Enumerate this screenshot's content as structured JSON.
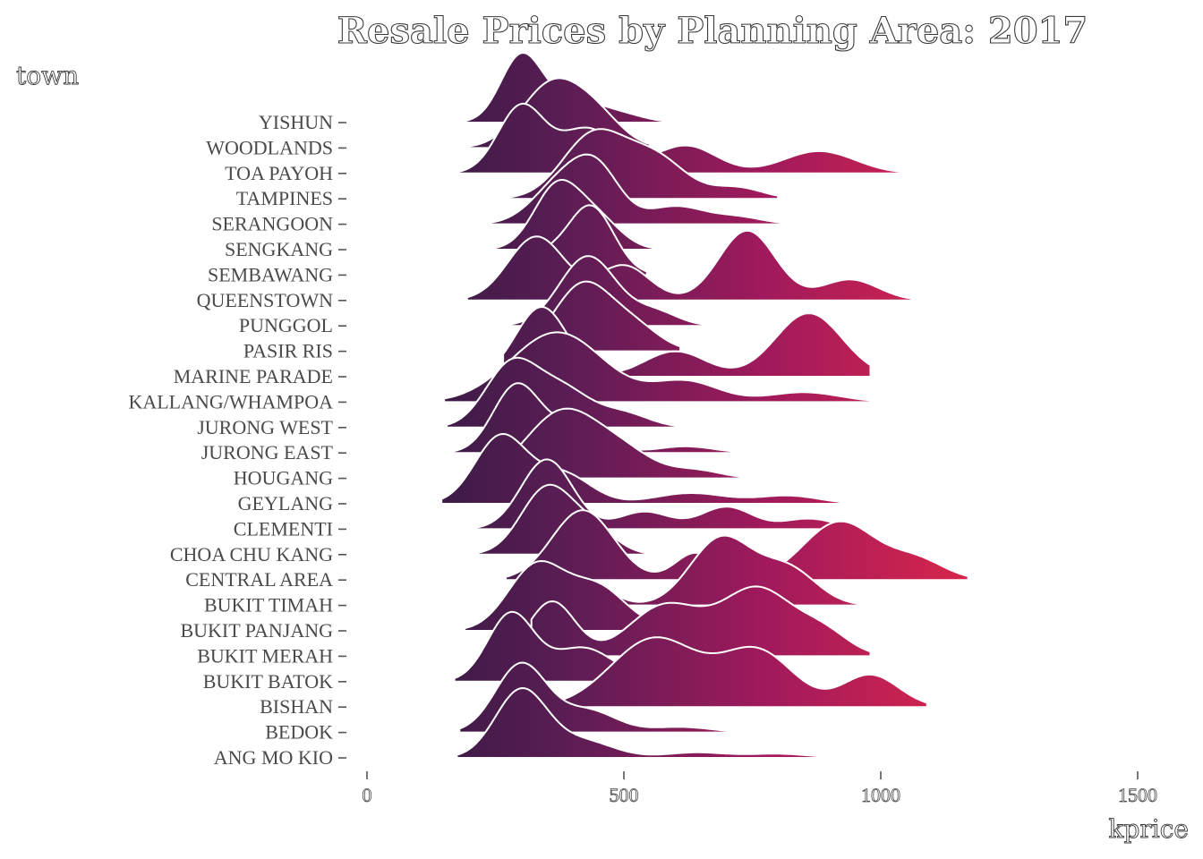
{
  "chart_data": {
    "type": "ridgeline",
    "title": "Resale Prices by Planning Area: 2017",
    "xlabel": "kprice",
    "ylabel": "town",
    "xlim": [
      -20,
      1550
    ],
    "x_ticks": [
      0,
      500,
      1000,
      1500
    ],
    "x_tick_labels": [
      "0",
      "500",
      "1000",
      "1500"
    ],
    "grid": false,
    "legend": "none",
    "fill_colormap": [
      "#2a1a3d",
      "#5b1d54",
      "#a01a5c",
      "#d6254c",
      "#ee5a3a"
    ],
    "categories": [
      "ANG MO KIO",
      "BEDOK",
      "BISHAN",
      "BUKIT BATOK",
      "BUKIT MERAH",
      "BUKIT PANJANG",
      "BUKIT TIMAH",
      "CENTRAL AREA",
      "CHOA CHU KANG",
      "CLEMENTI",
      "GEYLANG",
      "HOUGANG",
      "JURONG EAST",
      "JURONG WEST",
      "KALLANG/WHAMPOA",
      "MARINE PARADE",
      "PASIR RIS",
      "PUNGGOL",
      "QUEENSTOWN",
      "SEMBAWANG",
      "SENGKANG",
      "SERANGOON",
      "TAMPINES",
      "TOA PAYOH",
      "WOODLANDS",
      "YISHUN"
    ],
    "series": [
      {
        "name": "ANG MO KIO",
        "min": 175,
        "max": 930,
        "peaks": [
          [
            300,
            50,
            1.0
          ],
          [
            420,
            60,
            0.25
          ],
          [
            640,
            60,
            0.08
          ],
          [
            800,
            60,
            0.06
          ]
        ]
      },
      {
        "name": "BEDOK",
        "min": 180,
        "max": 820,
        "peaks": [
          [
            300,
            50,
            1.0
          ],
          [
            430,
            55,
            0.32
          ],
          [
            610,
            60,
            0.08
          ]
        ]
      },
      {
        "name": "BISHAN",
        "min": 380,
        "max": 1090,
        "peaks": [
          [
            560,
            85,
            0.75
          ],
          [
            760,
            70,
            0.6
          ],
          [
            980,
            55,
            0.35
          ]
        ]
      },
      {
        "name": "BUKIT BATOK",
        "min": 170,
        "max": 720,
        "peaks": [
          [
            280,
            45,
            1.0
          ],
          [
            420,
            60,
            0.5
          ],
          [
            600,
            55,
            0.08
          ]
        ]
      },
      {
        "name": "BUKIT MERAH",
        "min": 320,
        "max": 980,
        "peaks": [
          [
            360,
            45,
            0.65
          ],
          [
            580,
            70,
            0.6
          ],
          [
            760,
            70,
            0.8
          ],
          [
            890,
            50,
            0.25
          ]
        ]
      },
      {
        "name": "BUKIT PANJANG",
        "min": 190,
        "max": 700,
        "peaks": [
          [
            330,
            55,
            1.0
          ],
          [
            450,
            55,
            0.65
          ],
          [
            600,
            50,
            0.08
          ]
        ]
      },
      {
        "name": "BUKIT TIMAH",
        "min": 380,
        "max": 980,
        "peaks": [
          [
            440,
            40,
            0.25
          ],
          [
            690,
            60,
            0.85
          ],
          [
            820,
            55,
            0.45
          ]
        ]
      },
      {
        "name": "CENTRAL AREA",
        "min": 270,
        "max": 1170,
        "peaks": [
          [
            420,
            60,
            0.9
          ],
          [
            640,
            40,
            0.35
          ],
          [
            920,
            70,
            0.75
          ],
          [
            1070,
            55,
            0.25
          ]
        ]
      },
      {
        "name": "CHOA CHU KANG",
        "min": 190,
        "max": 590,
        "peaks": [
          [
            350,
            50,
            1.0
          ],
          [
            440,
            45,
            0.35
          ]
        ]
      },
      {
        "name": "CLEMENTI",
        "min": 180,
        "max": 940,
        "peaks": [
          [
            350,
            50,
            1.0
          ],
          [
            540,
            50,
            0.25
          ],
          [
            700,
            50,
            0.32
          ],
          [
            860,
            50,
            0.15
          ]
        ]
      },
      {
        "name": "GEYLANG",
        "min": 145,
        "max": 920,
        "peaks": [
          [
            260,
            50,
            1.0
          ],
          [
            380,
            55,
            0.45
          ],
          [
            630,
            70,
            0.16
          ],
          [
            820,
            60,
            0.12
          ]
        ]
      },
      {
        "name": "HOUGANG",
        "min": 185,
        "max": 740,
        "peaks": [
          [
            380,
            70,
            0.85
          ],
          [
            500,
            60,
            0.3
          ],
          [
            640,
            50,
            0.1
          ]
        ]
      },
      {
        "name": "JURONG EAST",
        "min": 165,
        "max": 730,
        "peaks": [
          [
            290,
            45,
            1.0
          ],
          [
            400,
            55,
            0.4
          ],
          [
            620,
            55,
            0.1
          ]
        ]
      },
      {
        "name": "JURONG WEST",
        "min": 155,
        "max": 620,
        "peaks": [
          [
            280,
            50,
            0.9
          ],
          [
            380,
            55,
            0.55
          ],
          [
            500,
            50,
            0.2
          ]
        ]
      },
      {
        "name": "KALLANG/WHAMPOA",
        "min": 150,
        "max": 1020,
        "peaks": [
          [
            370,
            90,
            0.85
          ],
          [
            620,
            65,
            0.25
          ],
          [
            850,
            70,
            0.12
          ]
        ]
      },
      {
        "name": "MARINE PARADE",
        "min": 265,
        "max": 980,
        "peaks": [
          [
            340,
            50,
            0.55
          ],
          [
            600,
            60,
            0.2
          ],
          [
            860,
            65,
            0.5
          ]
        ]
      },
      {
        "name": "PASIR RIS",
        "min": 250,
        "max": 610,
        "peaks": [
          [
            420,
            55,
            1.0
          ],
          [
            520,
            50,
            0.35
          ]
        ]
      },
      {
        "name": "PUNGGOL",
        "min": 250,
        "max": 710,
        "peaks": [
          [
            430,
            55,
            1.0
          ],
          [
            560,
            45,
            0.2
          ]
        ]
      },
      {
        "name": "QUEENSTOWN",
        "min": 195,
        "max": 1060,
        "peaks": [
          [
            330,
            55,
            0.55
          ],
          [
            500,
            50,
            0.3
          ],
          [
            740,
            55,
            0.6
          ],
          [
            940,
            55,
            0.18
          ]
        ]
      },
      {
        "name": "SEMBAWANG",
        "min": 215,
        "max": 545,
        "peaks": [
          [
            435,
            45,
            1.0
          ],
          [
            340,
            40,
            0.25
          ]
        ]
      },
      {
        "name": "SENGKANG",
        "min": 240,
        "max": 620,
        "peaks": [
          [
            370,
            45,
            1.0
          ],
          [
            450,
            45,
            0.45
          ]
        ]
      },
      {
        "name": "SERANGOON",
        "min": 190,
        "max": 810,
        "peaks": [
          [
            380,
            55,
            0.6
          ],
          [
            450,
            45,
            0.65
          ],
          [
            600,
            55,
            0.25
          ],
          [
            720,
            50,
            0.1
          ]
        ]
      },
      {
        "name": "TAMPINES",
        "min": 215,
        "max": 800,
        "peaks": [
          [
            440,
            60,
            0.85
          ],
          [
            560,
            60,
            0.55
          ],
          [
            720,
            50,
            0.15
          ]
        ]
      },
      {
        "name": "TOA PAYOH",
        "min": 170,
        "max": 1060,
        "peaks": [
          [
            300,
            45,
            0.6
          ],
          [
            430,
            55,
            0.4
          ],
          [
            620,
            60,
            0.25
          ],
          [
            880,
            70,
            0.2
          ]
        ]
      },
      {
        "name": "WOODLANDS",
        "min": 170,
        "max": 550,
        "peaks": [
          [
            360,
            60,
            1.0
          ],
          [
            450,
            50,
            0.4
          ]
        ]
      },
      {
        "name": "YISHUN",
        "min": 170,
        "max": 580,
        "peaks": [
          [
            300,
            40,
            1.0
          ],
          [
            400,
            55,
            0.35
          ],
          [
            500,
            45,
            0.1
          ]
        ]
      }
    ]
  }
}
